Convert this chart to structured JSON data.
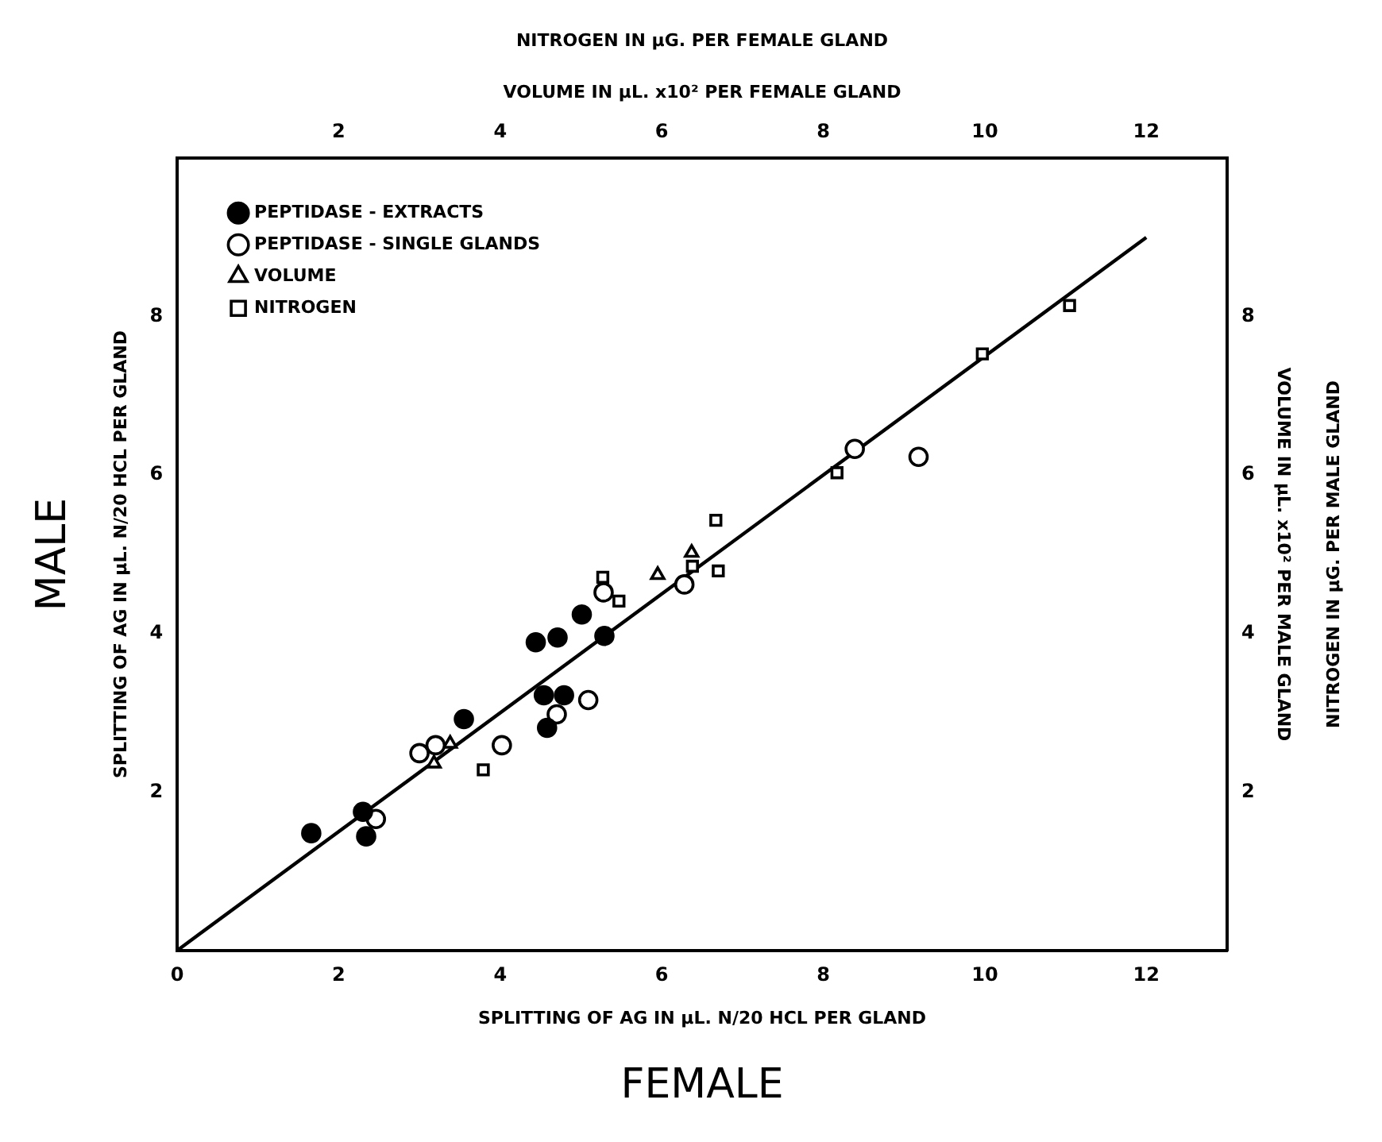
{
  "chart_data": {
    "type": "scatter",
    "xlabel": "SPLITTING OF AG IN μL. N/20 HCL PER GLAND",
    "ylabel": "SPLITTING OF AG IN μL. N/20 HCL PER GLAND",
    "x2label": "VOLUME IN μL. x10² PER FEMALE GLAND",
    "y2label": "VOLUME IN μL. x10² PER MALE GLAND",
    "annotations": [
      "NITROGEN IN μG. PER FEMALE GLAND",
      "NITROGEN IN μG. PER MALE GLAND",
      "MALE",
      "FEMALE"
    ],
    "xlim": [
      0,
      13
    ],
    "xticks": [
      0,
      2,
      4,
      6,
      8,
      10,
      12
    ],
    "ylim": [
      0,
      10
    ],
    "yticks": [
      2,
      4,
      6,
      8
    ],
    "x2lim": [
      0,
      13
    ],
    "x2ticks": [
      2,
      4,
      6,
      8,
      10,
      12
    ],
    "y2lim": [
      0,
      10
    ],
    "y2ticks": [
      2,
      4,
      6,
      8
    ],
    "legend": "top left",
    "grid": false,
    "series": [
      {
        "name": "PEPTIDASE - EXTRACTS",
        "color": "#000000",
        "marker": "circle",
        "x": [
          1.66,
          2.3,
          2.34,
          3.55,
          4.44,
          4.71,
          5.01,
          5.29,
          4.54,
          4.79,
          4.58
        ],
        "values": [
          1.48,
          1.75,
          1.44,
          2.92,
          3.89,
          3.95,
          4.24,
          3.97,
          3.22,
          3.22,
          2.81
        ]
      },
      {
        "name": "PEPTIDASE - SINGLE GLANDS",
        "color": "#000000",
        "marker": "circle",
        "x": [
          2.46,
          3.0,
          3.2,
          4.02,
          4.7,
          5.09,
          5.28,
          6.28,
          8.39,
          9.18
        ],
        "values": [
          1.66,
          2.49,
          2.59,
          2.59,
          2.98,
          3.16,
          4.52,
          4.62,
          6.33,
          6.23
        ]
      },
      {
        "name": "VOLUME",
        "color": "#000000",
        "marker": "triangle",
        "x": [
          3.18,
          3.38,
          5.95,
          6.37
        ],
        "values": [
          2.36,
          2.61,
          4.74,
          5.02
        ]
      },
      {
        "name": "NITROGEN",
        "color": "#000000",
        "marker": "square",
        "x": [
          3.79,
          5.27,
          5.47,
          6.38,
          6.67,
          6.7,
          8.17,
          9.97,
          11.05
        ],
        "values": [
          2.28,
          4.71,
          4.41,
          4.85,
          5.43,
          4.79,
          6.03,
          7.53,
          8.14
        ]
      },
      {
        "type": "line",
        "color": "#000000",
        "marker": "none",
        "line_style": "solid",
        "x": [
          0,
          12
        ],
        "values": [
          0,
          9
        ]
      }
    ]
  }
}
